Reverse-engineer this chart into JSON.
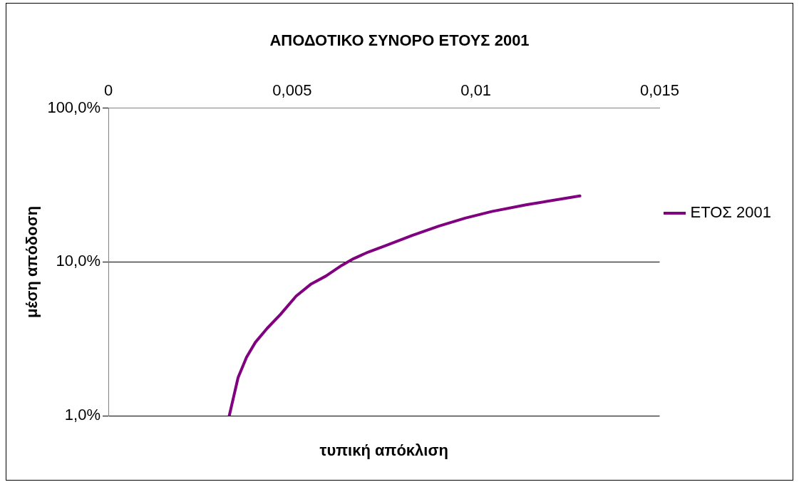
{
  "chart_data": {
    "type": "line",
    "title": "ΑΠΟΔΟΤΙΚΟ ΣΥΝΟΡΟ ΕΤΟΥΣ 2001",
    "xlabel": "τυπική απόκλιση",
    "ylabel": "μέση απόδοση",
    "x": [
      0.00329,
      0.00353,
      0.00376,
      0.004,
      0.00432,
      0.00468,
      0.00511,
      0.00552,
      0.00592,
      0.00635,
      0.00667,
      0.00707,
      0.00755,
      0.00827,
      0.00899,
      0.00971,
      0.01043,
      0.01139,
      0.01283
    ],
    "series": [
      {
        "name": "ΕΤΟΣ 2001",
        "color": "#800080",
        "values": [
          1.0,
          1.77,
          2.4,
          3.0,
          3.7,
          4.55,
          6.0,
          7.2,
          8.1,
          9.5,
          10.5,
          11.6,
          12.8,
          14.9,
          17.1,
          19.3,
          21.3,
          23.6,
          26.9
        ]
      }
    ],
    "xlim": [
      0,
      0.015
    ],
    "xticks": [
      {
        "value": 0,
        "label": "0"
      },
      {
        "value": 0.005,
        "label": "0,005"
      },
      {
        "value": 0.01,
        "label": "0,01"
      },
      {
        "value": 0.015,
        "label": "0,015"
      }
    ],
    "ylim": [
      1,
      100
    ],
    "yticks": [
      {
        "value": 1,
        "label": "1,0%"
      },
      {
        "value": 10,
        "label": "10,0%"
      },
      {
        "value": 100,
        "label": "100,0%"
      }
    ],
    "log": "y",
    "grid": "y",
    "legend": "right",
    "marker": "none",
    "line_style": "solid"
  }
}
